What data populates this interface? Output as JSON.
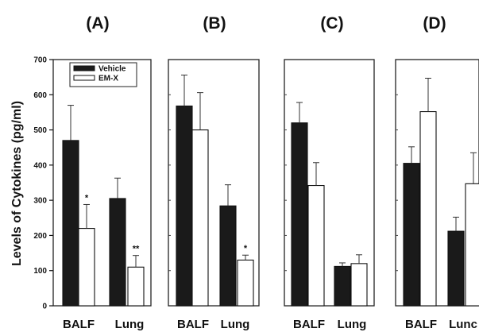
{
  "chart_data": {
    "type": "bar",
    "ylabel": "Levels of Cytokines (pg/ml)",
    "ylim": [
      0,
      700
    ],
    "yticks": [
      "0",
      "100",
      "200",
      "300",
      "400",
      "500",
      "600",
      "700"
    ],
    "grid": false,
    "legend": {
      "placement": "top-left",
      "entries": [
        {
          "name": "Vehicle",
          "color": "#1a1a1a"
        },
        {
          "name": "EM-X",
          "color": "#ffffff"
        }
      ]
    },
    "series_names": [
      "Vehicle",
      "EM-X"
    ],
    "panels": [
      {
        "label": "(A)",
        "categories": [
          "BALF",
          "Lung"
        ],
        "series": [
          {
            "name": "Vehicle",
            "values": [
              470,
              305
            ],
            "errors": [
              100,
              58
            ]
          },
          {
            "name": "EM-X",
            "values": [
              220,
              110
            ],
            "errors": [
              68,
              33
            ]
          }
        ],
        "annotations": [
          {
            "category": "BALF",
            "series": "EM-X",
            "text": "*"
          },
          {
            "category": "Lung",
            "series": "EM-X",
            "text": "**"
          }
        ]
      },
      {
        "label": "(B)",
        "categories": [
          "BALF",
          "Lung"
        ],
        "series": [
          {
            "name": "Vehicle",
            "values": [
              568,
              284
            ],
            "errors": [
              88,
              60
            ]
          },
          {
            "name": "EM-X",
            "values": [
              500,
              130
            ],
            "errors": [
              106,
              14
            ]
          }
        ],
        "annotations": [
          {
            "category": "Lung",
            "series": "EM-X",
            "text": "*"
          }
        ]
      },
      {
        "label": "(C)",
        "categories": [
          "BALF",
          "Lung"
        ],
        "series": [
          {
            "name": "Vehicle",
            "values": [
              520,
              112
            ],
            "errors": [
              58,
              10
            ]
          },
          {
            "name": "EM-X",
            "values": [
              342,
              120
            ],
            "errors": [
              65,
              25
            ]
          }
        ],
        "annotations": []
      },
      {
        "label": "(D)",
        "categories": [
          "BALF",
          "Lunc"
        ],
        "series": [
          {
            "name": "Vehicle",
            "values": [
              405,
              212
            ],
            "errors": [
              47,
              40
            ]
          },
          {
            "name": "EM-X",
            "values": [
              552,
              347
            ],
            "errors": [
              95,
              88
            ]
          }
        ],
        "annotations": []
      }
    ]
  }
}
